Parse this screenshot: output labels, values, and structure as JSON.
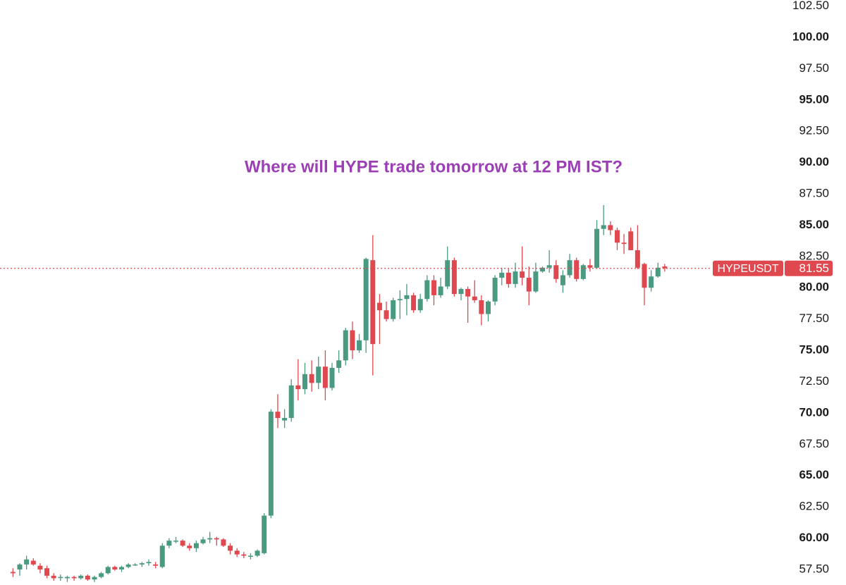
{
  "chart_data": {
    "type": "candlestick",
    "title": "Where will HYPE trade tomorrow at 12 PM IST?",
    "symbol": "HYPEUSDT",
    "last_price": {
      "value": 81.55,
      "label": "81.55"
    },
    "up_color": "#4a9a82",
    "down_color": "#e0484f",
    "title_color": "#9b3fb5",
    "ylim": [
      56.26,
      102.98
    ],
    "yticks": [
      {
        "value": 57.5,
        "label": "57.50"
      },
      {
        "value": 60,
        "label": "60.00"
      },
      {
        "value": 62.5,
        "label": "62.50"
      },
      {
        "value": 65,
        "label": "65.00"
      },
      {
        "value": 67.5,
        "label": "67.50"
      },
      {
        "value": 70,
        "label": "70.00"
      },
      {
        "value": 72.5,
        "label": "72.50"
      },
      {
        "value": 75,
        "label": "75.00"
      },
      {
        "value": 77.5,
        "label": "77.50"
      },
      {
        "value": 80,
        "label": "80.00"
      },
      {
        "value": 82.5,
        "label": "82.50"
      },
      {
        "value": 85,
        "label": "85.00"
      },
      {
        "value": 87.5,
        "label": "87.50"
      },
      {
        "value": 90,
        "label": "90.00"
      },
      {
        "value": 92.5,
        "label": "92.50"
      },
      {
        "value": 95,
        "label": "95.00"
      },
      {
        "value": 97.5,
        "label": "97.50"
      },
      {
        "value": 100,
        "label": "100.00"
      },
      {
        "value": 102.5,
        "label": "102.50"
      }
    ],
    "open": [
      57.3,
      57.5,
      57.9,
      58.2,
      57.8,
      57.6,
      57.0,
      56.9,
      56.8,
      56.9,
      56.8,
      57.0,
      56.7,
      56.9,
      57.2,
      57.7,
      57.5,
      57.7,
      57.9,
      57.9,
      58.0,
      57.9,
      57.7,
      59.4,
      59.8,
      59.8,
      59.4,
      59.2,
      59.6,
      59.9,
      60.0,
      59.9,
      59.4,
      59.0,
      58.7,
      58.6,
      58.6,
      58.8,
      61.8,
      70.1,
      69.4,
      69.6,
      72.2,
      71.9,
      73.1,
      72.4,
      73.7,
      72.0,
      73.6,
      74.2,
      76.6,
      75.0,
      75.8,
      82.2,
      78.8,
      78.2,
      77.5,
      79.0,
      79.1,
      79.4,
      78.2,
      79.1,
      80.6,
      79.4,
      80.1,
      82.2,
      79.5,
      79.9,
      79.3,
      79.0,
      77.9,
      78.9,
      80.8,
      81.2,
      80.3,
      81.3,
      80.8,
      79.7,
      81.3,
      81.6,
      81.8,
      80.2,
      81.0,
      82.2,
      80.7,
      81.8,
      81.6,
      84.7,
      85.0,
      84.6,
      83.6,
      84.5,
      83.0,
      81.9,
      80.0,
      80.9,
      81.7
    ],
    "high": [
      57.6,
      58.0,
      58.6,
      58.4,
      58.0,
      57.8,
      57.2,
      57.1,
      57.0,
      57.0,
      57.1,
      57.1,
      57.0,
      57.3,
      57.8,
      57.8,
      57.8,
      58.0,
      58.0,
      58.1,
      58.3,
      58.1,
      59.6,
      60.0,
      60.1,
      59.9,
      59.6,
      59.8,
      60.1,
      60.5,
      60.1,
      60.0,
      59.6,
      59.2,
      58.9,
      58.8,
      59.1,
      62.0,
      70.3,
      71.5,
      70.3,
      72.7,
      74.3,
      74.0,
      74.2,
      74.5,
      75.0,
      74.0,
      75.0,
      76.8,
      77.3,
      76.3,
      82.4,
      84.2,
      79.5,
      78.9,
      79.2,
      79.8,
      80.3,
      79.6,
      79.5,
      81.0,
      81.0,
      80.8,
      83.3,
      82.4,
      80.0,
      80.1,
      80.6,
      79.4,
      79.0,
      81.0,
      81.6,
      81.5,
      82.0,
      83.3,
      81.7,
      82.0,
      81.7,
      83.0,
      82.2,
      81.4,
      82.7,
      82.4,
      81.9,
      82.3,
      85.4,
      86.6,
      85.3,
      84.8,
      84.3,
      84.8,
      85.0,
      82.0,
      81.4,
      82.0,
      81.9
    ],
    "low": [
      56.9,
      57.0,
      57.5,
      57.8,
      57.2,
      56.8,
      56.6,
      56.6,
      56.5,
      56.6,
      56.7,
      56.6,
      56.5,
      56.8,
      57.1,
      57.4,
      57.3,
      57.6,
      57.8,
      57.7,
      57.8,
      57.6,
      57.6,
      59.2,
      59.6,
      59.3,
      59.0,
      58.9,
      59.5,
      59.6,
      59.4,
      59.3,
      58.7,
      58.5,
      58.4,
      58.3,
      58.5,
      58.7,
      61.6,
      68.8,
      68.8,
      69.3,
      71.0,
      71.5,
      71.7,
      71.9,
      71.0,
      71.8,
      73.2,
      73.8,
      74.3,
      74.8,
      74.8,
      73.0,
      75.5,
      77.3,
      77.3,
      77.5,
      77.8,
      78.0,
      78.0,
      78.9,
      78.6,
      79.2,
      79.9,
      79.3,
      79.0,
      77.2,
      78.8,
      77.0,
      77.3,
      78.6,
      80.2,
      80.0,
      80.0,
      80.2,
      78.6,
      79.6,
      81.2,
      81.2,
      80.4,
      79.6,
      80.8,
      80.5,
      80.6,
      81.3,
      81.5,
      84.2,
      84.2,
      83.0,
      82.7,
      83.0,
      81.5,
      78.6,
      79.7,
      80.8,
      81.3
    ],
    "close": [
      57.2,
      57.9,
      58.3,
      57.9,
      57.5,
      57.0,
      56.8,
      56.9,
      56.9,
      56.8,
      57.0,
      56.7,
      56.9,
      57.2,
      57.7,
      57.5,
      57.7,
      57.9,
      57.9,
      58.0,
      58.1,
      57.8,
      59.4,
      59.8,
      59.8,
      59.4,
      59.2,
      59.6,
      59.9,
      60.0,
      59.9,
      59.4,
      59.0,
      58.7,
      58.6,
      58.6,
      59.0,
      61.8,
      70.1,
      69.6,
      69.6,
      72.2,
      71.9,
      73.1,
      72.4,
      73.7,
      72.0,
      73.6,
      74.2,
      76.6,
      75.0,
      75.8,
      82.3,
      75.5,
      78.2,
      77.5,
      79.0,
      79.1,
      79.4,
      78.2,
      79.1,
      80.6,
      79.4,
      80.1,
      82.2,
      79.5,
      79.9,
      79.3,
      79.0,
      77.9,
      78.9,
      80.8,
      81.2,
      80.3,
      81.3,
      80.8,
      79.7,
      81.3,
      81.6,
      81.8,
      80.7,
      81.0,
      82.2,
      80.7,
      81.8,
      81.6,
      84.7,
      85.0,
      84.6,
      83.6,
      83.5,
      83.0,
      81.6,
      80.0,
      80.9,
      81.6,
      81.55
    ]
  }
}
